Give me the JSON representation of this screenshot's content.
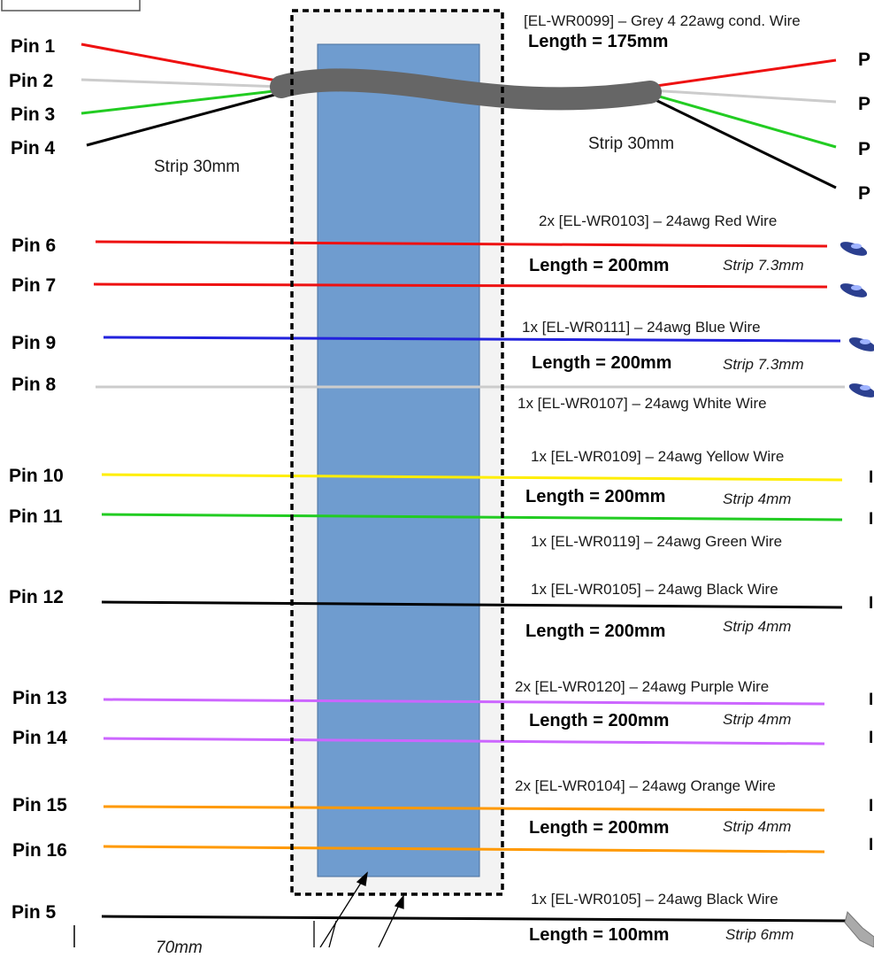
{
  "cable": {
    "part": "[EL-WR0099] – Grey 4 22awg cond. Wire",
    "length": "Length = 175mm",
    "strip_left": "Strip 30mm",
    "strip_right": "Strip 30mm",
    "left_pins": [
      "Pin 1",
      "Pin 2",
      "Pin 3",
      "Pin 4"
    ],
    "right_pins": [
      "P",
      "P",
      "P",
      "P"
    ],
    "conductor_colors": [
      "#ee1111",
      "#cccccc",
      "#22cc22",
      "#000000"
    ],
    "jacket_color": "#666666"
  },
  "wire_groups": [
    {
      "part": "2x [EL-WR0103] – 24awg Red Wire",
      "length": "Length = 200mm",
      "strip": "Strip 7.3mm",
      "color": "#ee1111",
      "pins": [
        "Pin 6",
        "Pin 7"
      ],
      "terminal": "blue ferrule"
    },
    {
      "part": "1x [EL-WR0111] – 24awg Blue Wire",
      "length": "Length = 200mm",
      "strip": "Strip 7.3mm",
      "color": "#2222dd",
      "pins": [
        "Pin 9"
      ],
      "terminal": "blue ferrule"
    },
    {
      "part": "1x [EL-WR0107] – 24awg White Wire",
      "color": "#cccccc",
      "pins": [
        "Pin 8"
      ],
      "terminal": "blue ferrule"
    },
    {
      "part": "1x [EL-WR0109] – 24awg Yellow Wire",
      "length": "Length = 200mm",
      "strip": "Strip 4mm",
      "color": "#ffee00",
      "pins": [
        "Pin 10"
      ]
    },
    {
      "part": "1x [EL-WR0119] – 24awg Green Wire",
      "color": "#22cc22",
      "pins": [
        "Pin 11"
      ]
    },
    {
      "part": "1x [EL-WR0105] – 24awg Black Wire",
      "length": "Length = 200mm",
      "strip": "Strip 4mm",
      "color": "#000000",
      "pins": [
        "Pin 12"
      ]
    },
    {
      "part": "2x [EL-WR0120] – 24awg Purple Wire",
      "length": "Length = 200mm",
      "strip": "Strip 4mm",
      "color": "#cc66ff",
      "pins": [
        "Pin 13",
        "Pin 14"
      ]
    },
    {
      "part": "2x [EL-WR0104] – 24awg Orange Wire",
      "length": "Length = 200mm",
      "strip": "Strip 4mm",
      "color": "#ff9900",
      "pins": [
        "Pin 15",
        "Pin 16"
      ]
    },
    {
      "part": "1x [EL-WR0105] – 24awg Black Wire",
      "length": "Length = 100mm",
      "strip": "Strip 6mm",
      "color": "#000000",
      "pins": [
        "Pin 5"
      ],
      "terminal": "grey ring lug"
    }
  ],
  "sleeve": {
    "fill": "#6f9ccf",
    "backdrop": "#f3f3f3"
  },
  "bottom_dimension": "70mm",
  "right_edge_cut_chars": [
    "I",
    "I",
    "I",
    "I",
    "I",
    "I",
    "I"
  ]
}
